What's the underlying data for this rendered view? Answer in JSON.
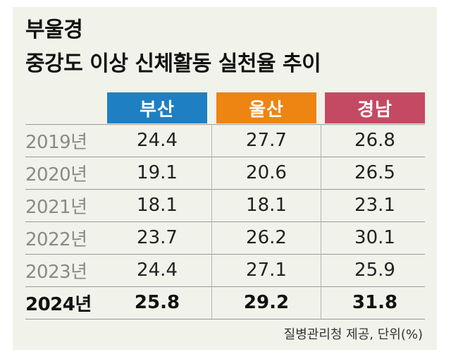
{
  "title": {
    "line1": "부울경",
    "line2": "중강도 이상 신체활동 실천율 추이"
  },
  "columns": [
    "부산",
    "울산",
    "경남"
  ],
  "colors": {
    "busan": "#1f7fc3",
    "ulsan": "#ee8411",
    "gyeongnam": "#c44a63",
    "panel": "#f1f2ea"
  },
  "rows": [
    {
      "year": "2019년",
      "values": [
        "24.4",
        "27.7",
        "26.8"
      ]
    },
    {
      "year": "2020년",
      "values": [
        "19.1",
        "20.6",
        "26.5"
      ]
    },
    {
      "year": "2021년",
      "values": [
        "18.1",
        "18.1",
        "23.1"
      ]
    },
    {
      "year": "2022년",
      "values": [
        "23.7",
        "26.2",
        "30.1"
      ]
    },
    {
      "year": "2023년",
      "values": [
        "24.4",
        "27.1",
        "25.9"
      ]
    },
    {
      "year": "2024년",
      "values": [
        "25.8",
        "29.2",
        "31.8"
      ]
    }
  ],
  "source": "질병관리청 제공, 단위(%)"
}
